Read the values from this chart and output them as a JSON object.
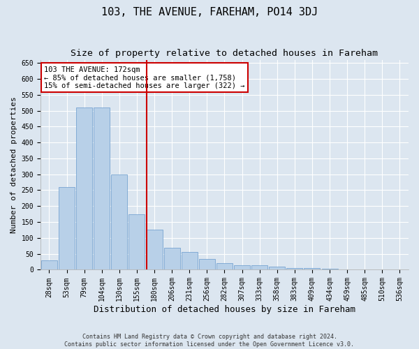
{
  "title": "103, THE AVENUE, FAREHAM, PO14 3DJ",
  "subtitle": "Size of property relative to detached houses in Fareham",
  "xlabel": "Distribution of detached houses by size in Fareham",
  "ylabel": "Number of detached properties",
  "footer_line1": "Contains HM Land Registry data © Crown copyright and database right 2024.",
  "footer_line2": "Contains public sector information licensed under the Open Government Licence v3.0.",
  "categories": [
    "28sqm",
    "53sqm",
    "79sqm",
    "104sqm",
    "130sqm",
    "155sqm",
    "180sqm",
    "206sqm",
    "231sqm",
    "256sqm",
    "282sqm",
    "307sqm",
    "333sqm",
    "358sqm",
    "383sqm",
    "409sqm",
    "434sqm",
    "459sqm",
    "485sqm",
    "510sqm",
    "536sqm"
  ],
  "values": [
    30,
    260,
    510,
    510,
    300,
    175,
    125,
    70,
    55,
    35,
    20,
    15,
    15,
    10,
    5,
    5,
    4,
    2,
    1,
    2,
    1
  ],
  "bar_color": "#b8d0e8",
  "bar_edge_color": "#6699cc",
  "bar_edge_width": 0.5,
  "vline_x_index": 6,
  "vline_color": "#cc0000",
  "annotation_title": "103 THE AVENUE: 172sqm",
  "annotation_line1": "← 85% of detached houses are smaller (1,758)",
  "annotation_line2": "15% of semi-detached houses are larger (322) →",
  "annotation_box_color": "#cc0000",
  "ylim": [
    0,
    660
  ],
  "yticks": [
    0,
    50,
    100,
    150,
    200,
    250,
    300,
    350,
    400,
    450,
    500,
    550,
    600,
    650
  ],
  "background_color": "#dce6f0",
  "plot_background_color": "#dce6f0",
  "grid_color": "#ffffff",
  "title_fontsize": 11,
  "subtitle_fontsize": 9.5,
  "xlabel_fontsize": 9,
  "ylabel_fontsize": 8,
  "tick_fontsize": 7,
  "annotation_fontsize": 7.5,
  "footer_fontsize": 6
}
